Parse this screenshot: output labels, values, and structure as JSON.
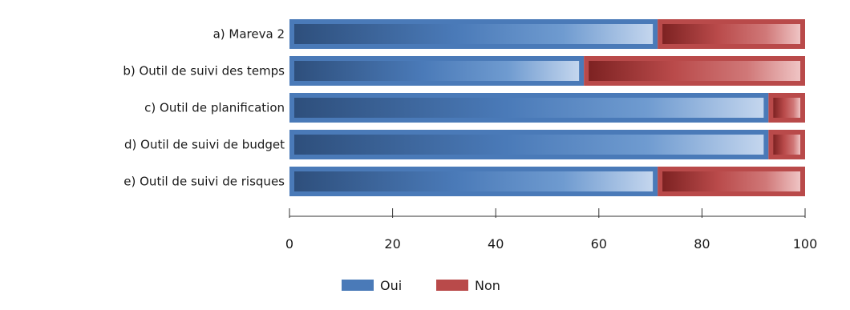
{
  "chart_data": {
    "type": "bar",
    "orientation": "horizontal",
    "stacked": true,
    "categories": [
      "a) Mareva 2",
      "b) Outil de suivi des temps",
      "c) Outil de planification",
      "d) Outil de suivi de budget",
      "e) Outil de suivi de risques"
    ],
    "series": [
      {
        "name": "Oui",
        "color": "#4a7ab8",
        "values": [
          71.4,
          57.1,
          92.9,
          92.9,
          71.4
        ]
      },
      {
        "name": "Non",
        "color": "#b94a4a",
        "values": [
          28.6,
          42.9,
          7.1,
          7.1,
          28.6
        ]
      }
    ],
    "xlim": [
      0,
      100
    ],
    "xticks": [
      "0",
      "20",
      "40",
      "60",
      "80",
      "100"
    ],
    "grid": false,
    "legend_position": "bottom"
  }
}
